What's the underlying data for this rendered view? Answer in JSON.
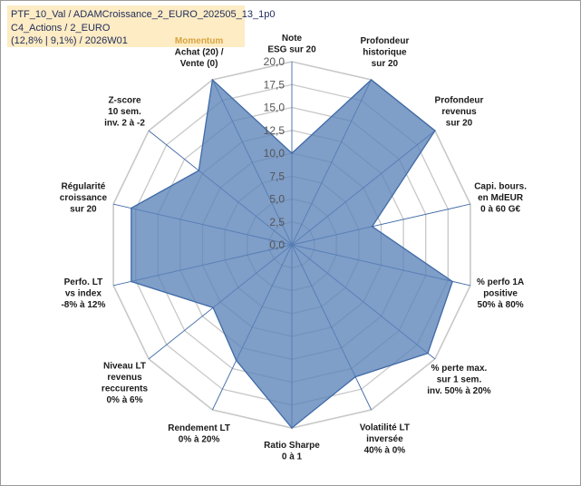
{
  "info": {
    "line1": "PTF_10_Val / ADAMCroissance_2_EURO_202505_13_1p0",
    "line2": "C4_Actions / 2_EURO",
    "line3": "(12,8% | 9,1%) / 2026W01"
  },
  "colors": {
    "fill": "#5b83b8",
    "stroke": "#3f6aa6",
    "grid": "#c8c8c8",
    "spoke": "#3f6aa6",
    "momentum": "#d9a441"
  },
  "chart_data": {
    "type": "radar",
    "rmin": 0,
    "rmax": 20,
    "ticks": [
      "0,0",
      "2,5",
      "5,0",
      "7,5",
      "10,0",
      "12,5",
      "15,0",
      "17,5",
      "20,0"
    ],
    "tick_values": [
      0,
      2.5,
      5,
      7.5,
      10,
      12.5,
      15,
      17.5,
      20
    ],
    "categories": [
      {
        "lines": [
          "Note",
          "ESG sur 20"
        ]
      },
      {
        "lines": [
          "Profondeur",
          "historique",
          "sur 20"
        ]
      },
      {
        "lines": [
          "Profondeur",
          "revenus",
          "sur 20"
        ]
      },
      {
        "lines": [
          "Capi. bours.",
          "en MdEUR",
          "0 à 60 G€"
        ]
      },
      {
        "lines": [
          "% perfo 1A",
          "positive",
          "50% à 80%"
        ]
      },
      {
        "lines": [
          "% perte max.",
          "sur 1 sem.",
          "inv. 50% à 20%"
        ]
      },
      {
        "lines": [
          "Volatilité LT",
          "inversée",
          "40% à 0%"
        ]
      },
      {
        "lines": [
          "Ratio Sharpe",
          "0 à 1"
        ]
      },
      {
        "lines": [
          "Rendement LT",
          "0% à 20%"
        ]
      },
      {
        "lines": [
          "Niveau LT",
          "revenus",
          "reccurents",
          "0% à 6%"
        ]
      },
      {
        "lines": [
          "Perfo. LT",
          "vs index",
          "-8% à 12%"
        ]
      },
      {
        "lines": [
          "Régularité",
          "croissance",
          "sur 20"
        ]
      },
      {
        "lines": [
          "Z-score",
          "10 sem.",
          "inv. 2 à -2"
        ]
      },
      {
        "lines": [
          "Momentum",
          "Achat (20) /",
          "Vente (0)"
        ]
      }
    ],
    "series": [
      {
        "name": "PTF_10_Val",
        "values": [
          10,
          20,
          20,
          9,
          18,
          19,
          16,
          20,
          14,
          11,
          18,
          18,
          13,
          20
        ]
      }
    ]
  }
}
